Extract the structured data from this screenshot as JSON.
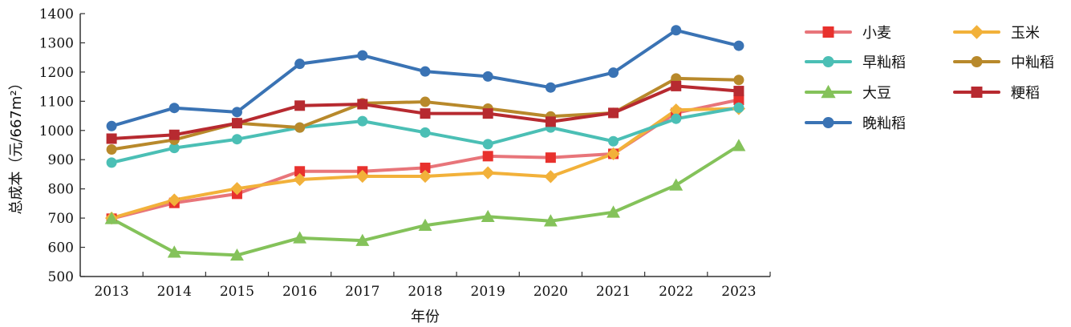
{
  "chart_data": {
    "type": "line",
    "title": "",
    "xlabel": "年份",
    "ylabel": "总成本（元/667m²）",
    "ylim": [
      500,
      1400
    ],
    "yticks": [
      500,
      600,
      700,
      800,
      900,
      1000,
      1100,
      1200,
      1300,
      1400
    ],
    "grid": false,
    "legend_position": "right",
    "categories": [
      "2013",
      "2014",
      "2015",
      "2016",
      "2017",
      "2018",
      "2019",
      "2020",
      "2021",
      "2022",
      "2023"
    ],
    "series": [
      {
        "name": "小麦",
        "color": "#e8757a",
        "marker_color": "#e8312d",
        "marker": "square",
        "values": [
          698,
          752,
          783,
          860,
          860,
          872,
          912,
          907,
          920,
          1060,
          1105
        ]
      },
      {
        "name": "玉米",
        "color": "#f2b13a",
        "marker_color": "#f2b13a",
        "marker": "diamond",
        "values": [
          700,
          762,
          801,
          832,
          843,
          843,
          855,
          842,
          920,
          1070,
          1075
        ]
      },
      {
        "name": "早籼稻",
        "color": "#4bbfb5",
        "marker_color": "#4bbfb5",
        "marker": "circle",
        "values": [
          890,
          940,
          970,
          1010,
          1032,
          993,
          953,
          1010,
          963,
          1040,
          1078
        ]
      },
      {
        "name": "中籼稻",
        "color": "#b8892b",
        "marker_color": "#b8892b",
        "marker": "circle",
        "values": [
          935,
          968,
          1025,
          1010,
          1093,
          1098,
          1075,
          1048,
          1060,
          1178,
          1173
        ]
      },
      {
        "name": "大豆",
        "color": "#84c25a",
        "marker_color": "#84c25a",
        "marker": "triangle",
        "values": [
          698,
          583,
          573,
          632,
          623,
          675,
          705,
          690,
          720,
          813,
          948
        ]
      },
      {
        "name": "粳稻",
        "color": "#b72a30",
        "marker_color": "#b72a30",
        "marker": "square",
        "values": [
          972,
          985,
          1025,
          1085,
          1090,
          1058,
          1058,
          1030,
          1060,
          1152,
          1135
        ]
      },
      {
        "name": "晚籼稻",
        "color": "#3a73b4",
        "marker_color": "#3a73b4",
        "marker": "circle",
        "values": [
          1015,
          1077,
          1063,
          1228,
          1257,
          1202,
          1185,
          1147,
          1198,
          1343,
          1290
        ]
      }
    ]
  }
}
